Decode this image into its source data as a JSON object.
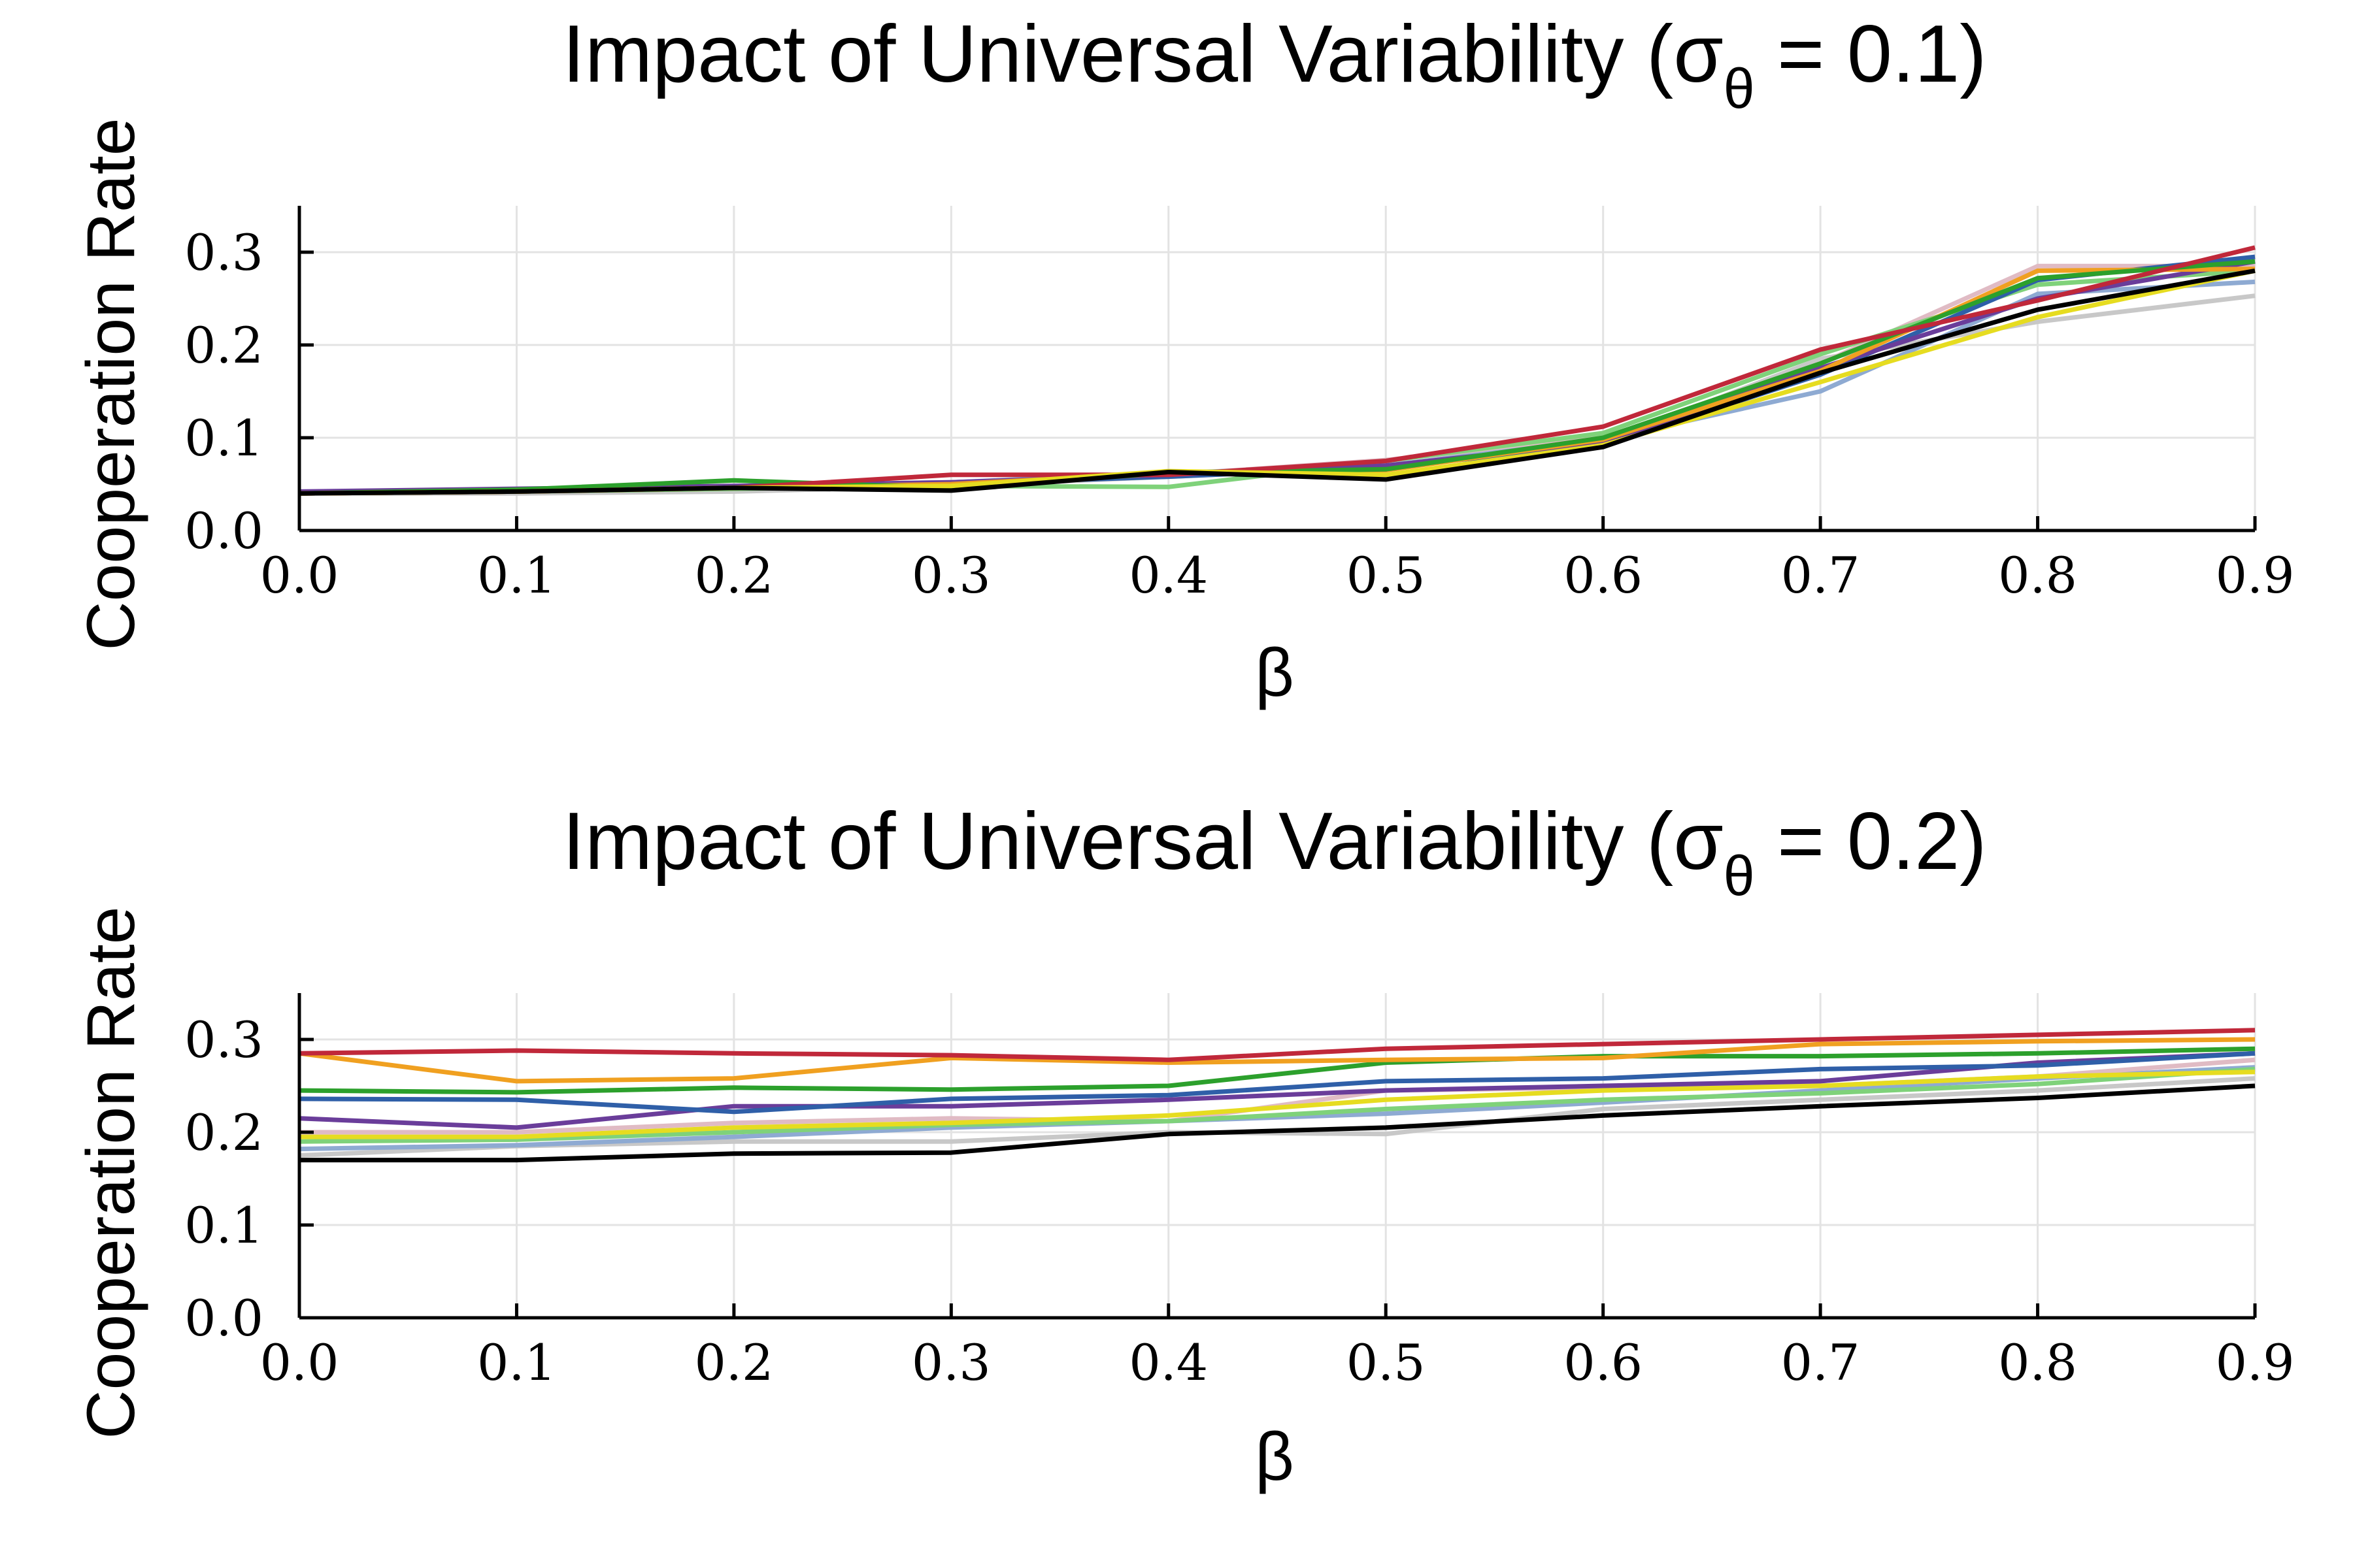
{
  "chart_data": [
    {
      "type": "line",
      "title": {
        "prefix": "Impact of Universal Variability (σ",
        "sub": "θ",
        "suffix": " = 0.1)"
      },
      "xlabel": "β",
      "ylabel": "Cooperation Rate",
      "xlim": [
        0.0,
        0.9
      ],
      "ylim": [
        0.0,
        0.35
      ],
      "grid": true,
      "x": [
        0.0,
        0.1,
        0.2,
        0.3,
        0.4,
        0.5,
        0.6,
        0.7,
        0.8,
        0.9
      ],
      "xticks": [
        "0.0",
        "0.1",
        "0.2",
        "0.3",
        "0.4",
        "0.5",
        "0.6",
        "0.7",
        "0.8",
        "0.9"
      ],
      "yticks": [
        "0.0",
        "0.1",
        "0.2",
        "0.3"
      ],
      "series": [
        {
          "name": "light-gray",
          "color": "#c8c8c8",
          "values": [
            0.04,
            0.04,
            0.042,
            0.048,
            0.058,
            0.068,
            0.095,
            0.185,
            0.225,
            0.253
          ]
        },
        {
          "name": "light-pink",
          "color": "#e0bbc4",
          "values": [
            0.04,
            0.042,
            0.046,
            0.052,
            0.06,
            0.076,
            0.1,
            0.18,
            0.285,
            0.285
          ]
        },
        {
          "name": "light-green",
          "color": "#7fd27a",
          "values": [
            0.04,
            0.042,
            0.045,
            0.048,
            0.047,
            0.075,
            0.105,
            0.19,
            0.265,
            0.28
          ]
        },
        {
          "name": "light-blue",
          "color": "#8eaad2",
          "values": [
            0.04,
            0.043,
            0.048,
            0.052,
            0.062,
            0.07,
            0.098,
            0.15,
            0.255,
            0.268
          ]
        },
        {
          "name": "blue",
          "color": "#2f5fa8",
          "values": [
            0.04,
            0.042,
            0.046,
            0.05,
            0.058,
            0.068,
            0.092,
            0.168,
            0.27,
            0.295
          ]
        },
        {
          "name": "purple",
          "color": "#6a3d9a",
          "values": [
            0.042,
            0.045,
            0.048,
            0.052,
            0.06,
            0.07,
            0.095,
            0.175,
            0.25,
            0.29
          ]
        },
        {
          "name": "orange",
          "color": "#f0a020",
          "values": [
            0.04,
            0.042,
            0.046,
            0.05,
            0.062,
            0.065,
            0.098,
            0.172,
            0.28,
            0.282
          ]
        },
        {
          "name": "green",
          "color": "#2ca02c",
          "values": [
            0.04,
            0.044,
            0.054,
            0.046,
            0.062,
            0.066,
            0.1,
            0.18,
            0.272,
            0.29
          ]
        },
        {
          "name": "red",
          "color": "#c0283a",
          "values": [
            0.04,
            0.042,
            0.046,
            0.06,
            0.06,
            0.075,
            0.112,
            0.195,
            0.248,
            0.305
          ]
        },
        {
          "name": "yellow",
          "color": "#e6dc20",
          "values": [
            0.04,
            0.042,
            0.046,
            0.048,
            0.064,
            0.06,
            0.092,
            0.16,
            0.23,
            0.28
          ]
        },
        {
          "name": "black",
          "color": "#000000",
          "values": [
            0.04,
            0.042,
            0.046,
            0.043,
            0.063,
            0.055,
            0.09,
            0.17,
            0.238,
            0.28
          ]
        }
      ]
    },
    {
      "type": "line",
      "title": {
        "prefix": "Impact of Universal Variability (σ",
        "sub": "θ",
        "suffix": " = 0.2)"
      },
      "xlabel": "β",
      "ylabel": "Cooperation Rate",
      "xlim": [
        0.0,
        0.9
      ],
      "ylim": [
        0.0,
        0.35
      ],
      "grid": true,
      "x": [
        0.0,
        0.1,
        0.2,
        0.3,
        0.4,
        0.5,
        0.6,
        0.7,
        0.8,
        0.9
      ],
      "xticks": [
        "0.0",
        "0.1",
        "0.2",
        "0.3",
        "0.4",
        "0.5",
        "0.6",
        "0.7",
        "0.8",
        "0.9"
      ],
      "yticks": [
        "0.0",
        "0.1",
        "0.2",
        "0.3"
      ],
      "series": [
        {
          "name": "light-gray",
          "color": "#c8c8c8",
          "values": [
            0.175,
            0.185,
            0.19,
            0.19,
            0.2,
            0.198,
            0.225,
            0.235,
            0.245,
            0.258
          ]
        },
        {
          "name": "light-blue",
          "color": "#8eaad2",
          "values": [
            0.182,
            0.186,
            0.195,
            0.205,
            0.212,
            0.22,
            0.232,
            0.245,
            0.258,
            0.27
          ]
        },
        {
          "name": "light-pink",
          "color": "#e0bbc4",
          "values": [
            0.2,
            0.2,
            0.21,
            0.215,
            0.212,
            0.245,
            0.248,
            0.25,
            0.26,
            0.278
          ]
        },
        {
          "name": "light-green",
          "color": "#7fd27a",
          "values": [
            0.19,
            0.192,
            0.2,
            0.208,
            0.212,
            0.225,
            0.235,
            0.242,
            0.252,
            0.268
          ]
        },
        {
          "name": "yellow",
          "color": "#e6dc20",
          "values": [
            0.195,
            0.195,
            0.205,
            0.21,
            0.218,
            0.235,
            0.245,
            0.25,
            0.26,
            0.265
          ]
        },
        {
          "name": "purple",
          "color": "#6a3d9a",
          "values": [
            0.215,
            0.205,
            0.228,
            0.228,
            0.235,
            0.245,
            0.25,
            0.255,
            0.275,
            0.285
          ]
        },
        {
          "name": "blue",
          "color": "#2f5fa8",
          "values": [
            0.236,
            0.235,
            0.222,
            0.236,
            0.24,
            0.255,
            0.258,
            0.268,
            0.272,
            0.285
          ]
        },
        {
          "name": "green",
          "color": "#2ca02c",
          "values": [
            0.245,
            0.243,
            0.248,
            0.246,
            0.25,
            0.275,
            0.282,
            0.282,
            0.285,
            0.29
          ]
        },
        {
          "name": "orange",
          "color": "#f0a020",
          "values": [
            0.285,
            0.255,
            0.258,
            0.28,
            0.275,
            0.278,
            0.28,
            0.295,
            0.298,
            0.3
          ]
        },
        {
          "name": "red",
          "color": "#c0283a",
          "values": [
            0.285,
            0.288,
            0.285,
            0.283,
            0.278,
            0.29,
            0.295,
            0.3,
            0.305,
            0.31
          ]
        },
        {
          "name": "black",
          "color": "#000000",
          "values": [
            0.17,
            0.17,
            0.177,
            0.178,
            0.198,
            0.205,
            0.218,
            0.228,
            0.237,
            0.25
          ]
        }
      ]
    }
  ]
}
